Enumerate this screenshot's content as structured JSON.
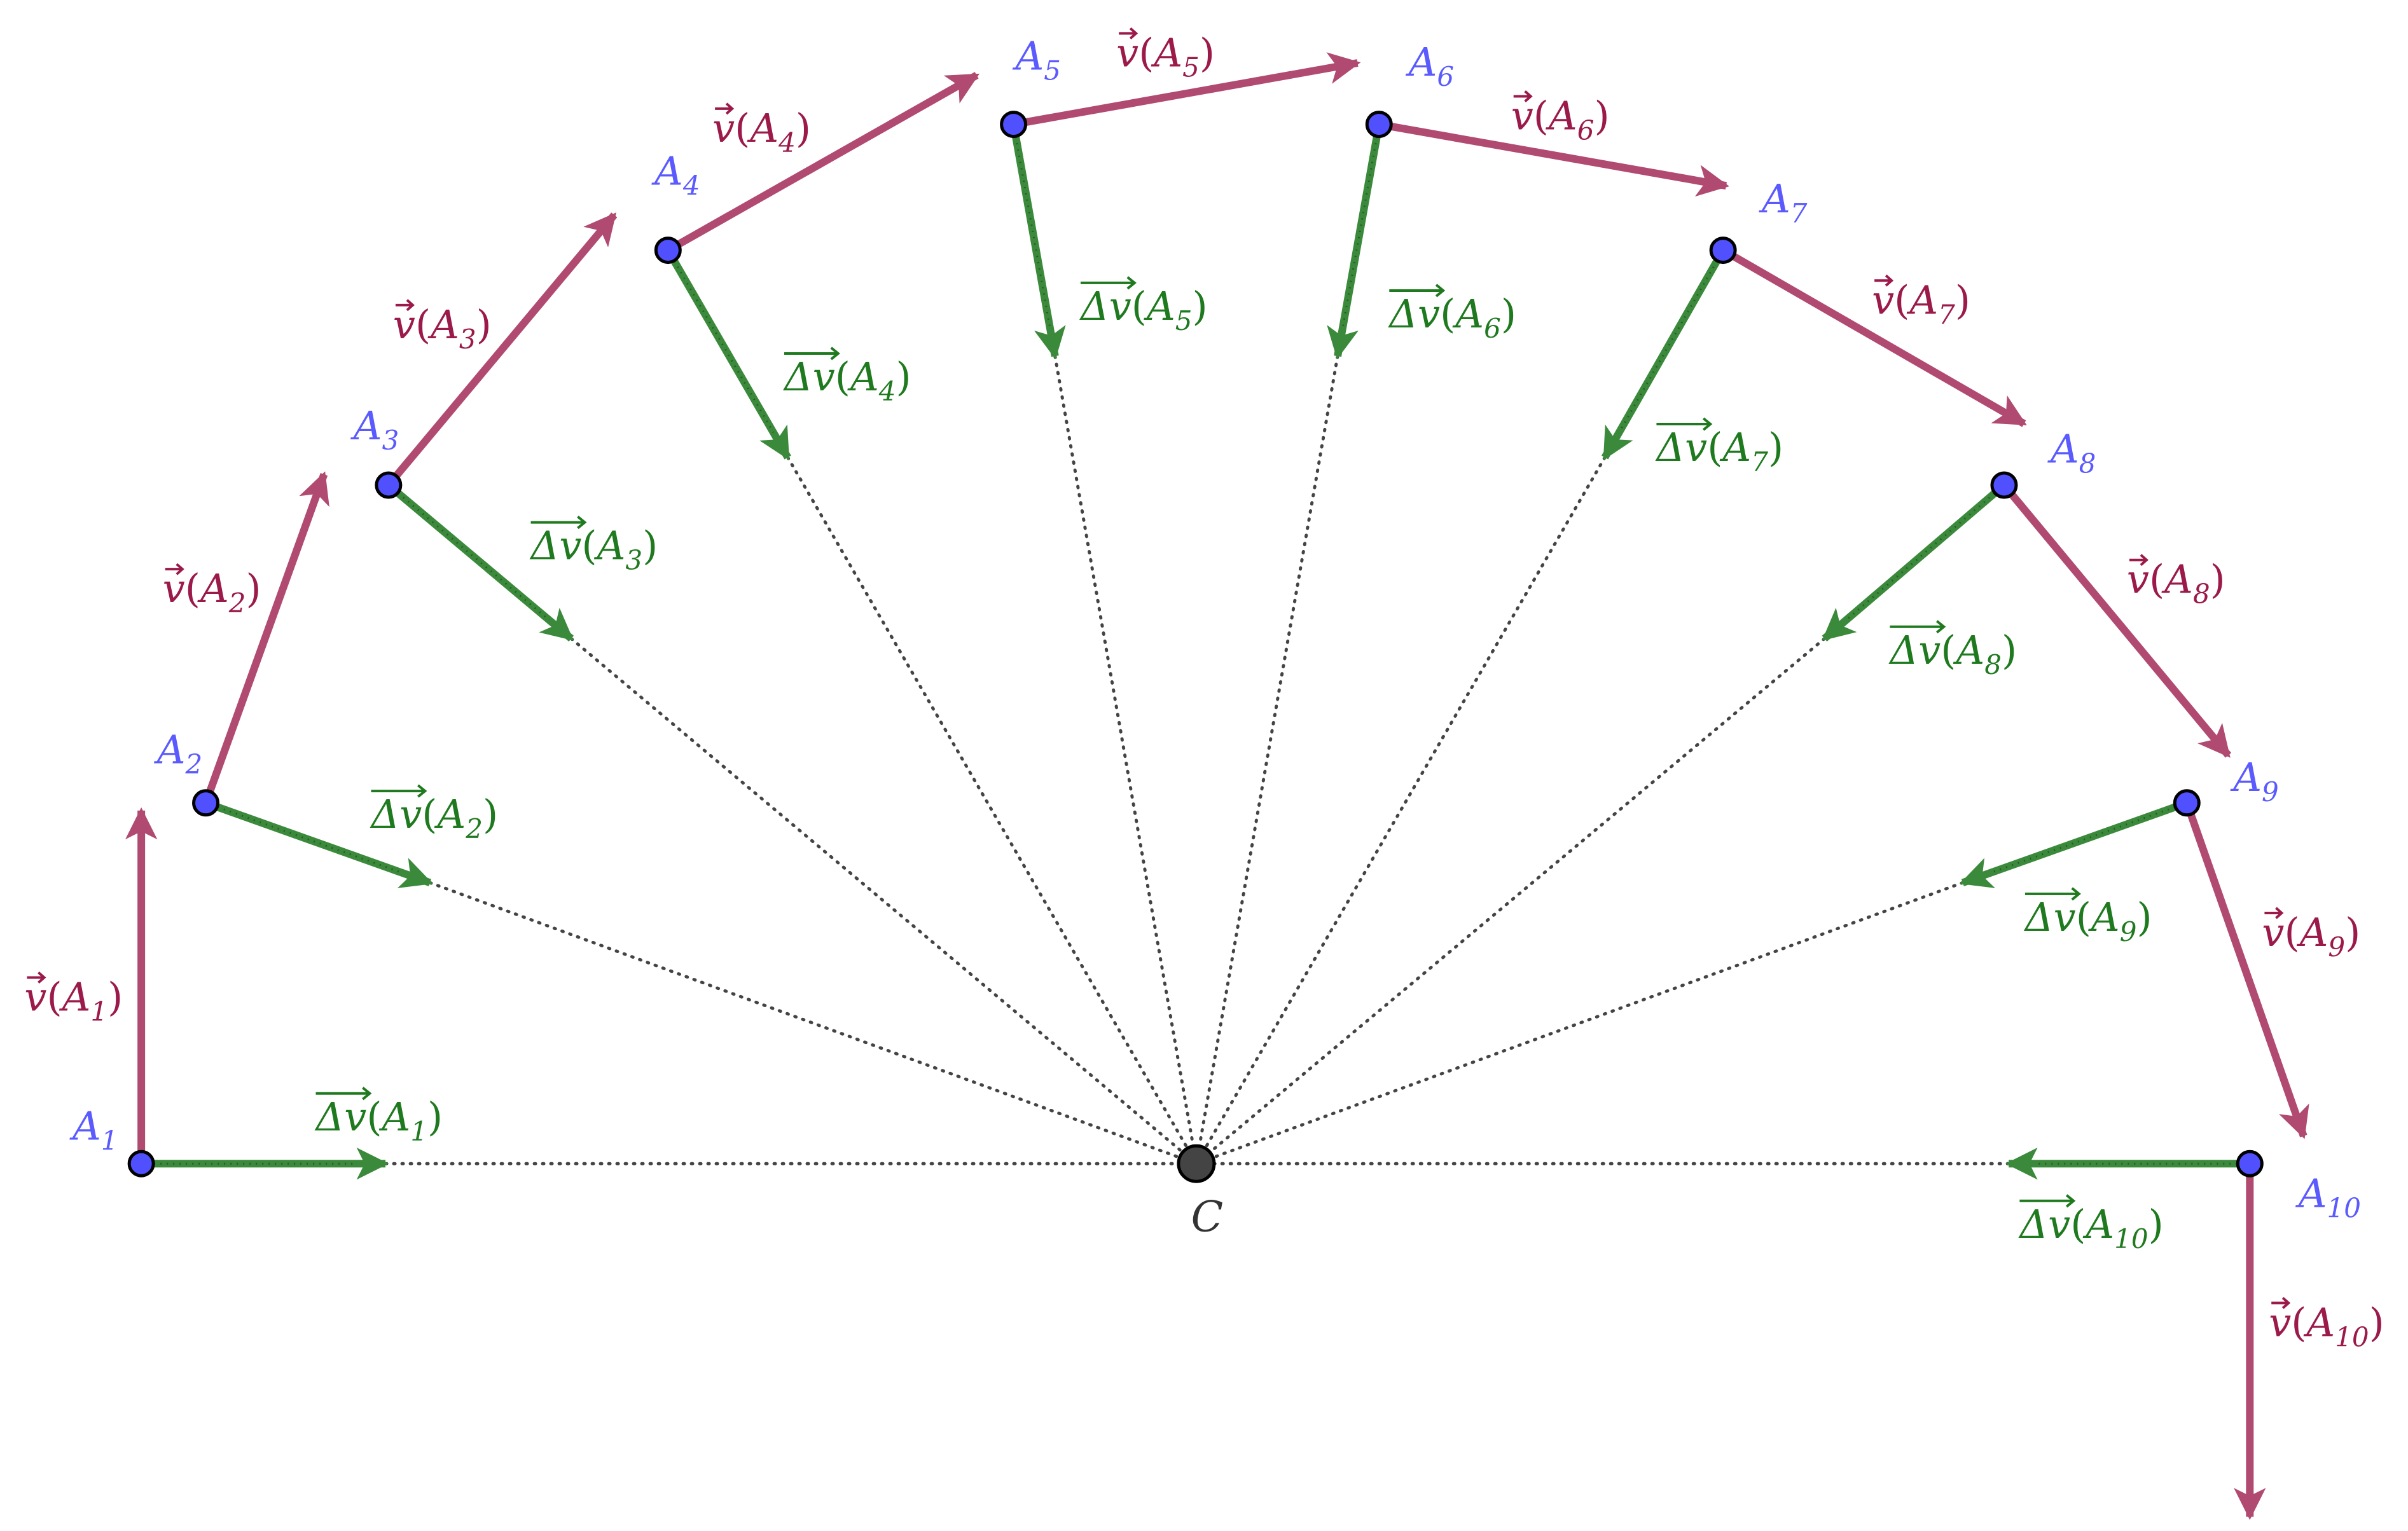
{
  "diagram": {
    "center": {
      "label": "C"
    },
    "points": [
      {
        "name": "A",
        "sub": "1"
      },
      {
        "name": "A",
        "sub": "2"
      },
      {
        "name": "A",
        "sub": "3"
      },
      {
        "name": "A",
        "sub": "4"
      },
      {
        "name": "A",
        "sub": "5"
      },
      {
        "name": "A",
        "sub": "6"
      },
      {
        "name": "A",
        "sub": "7"
      },
      {
        "name": "A",
        "sub": "8"
      },
      {
        "name": "A",
        "sub": "9"
      },
      {
        "name": "A",
        "sub": "10"
      }
    ],
    "velocity_label": {
      "vector": "v",
      "open": "(",
      "close": ")"
    },
    "delta_label": {
      "vector": "Δv",
      "open": "(",
      "close": ")"
    },
    "colors": {
      "point_fill": "#5050ff",
      "point_label": "#5a5aff",
      "velocity": "#b14a70",
      "velocity_label": "#9b1a4a",
      "delta": "#3b8a3b",
      "delta_label": "#1f7a1f",
      "dotted": "#444444",
      "center_fill": "#444444"
    }
  }
}
